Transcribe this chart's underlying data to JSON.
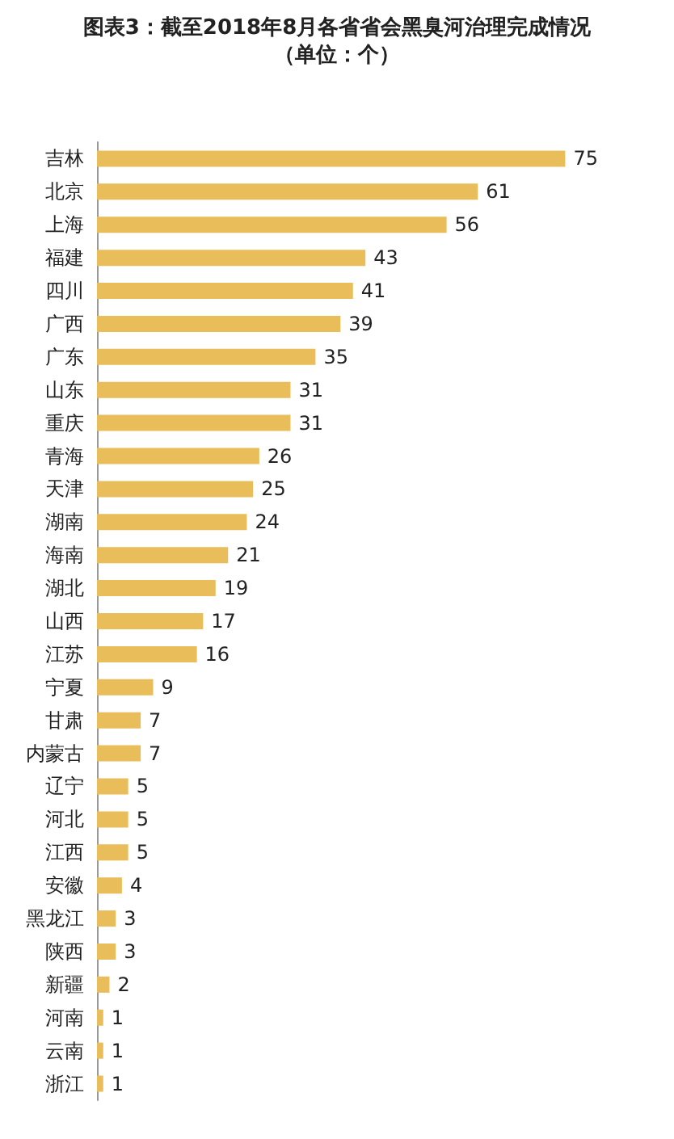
{
  "chart_data": {
    "type": "bar",
    "orientation": "horizontal",
    "title": "图表3：截至2018年8月各省省会黑臭河治理完成情况",
    "subtitle": "（单位：个）",
    "categories": [
      "吉林",
      "北京",
      "上海",
      "福建",
      "四川",
      "广西",
      "广东",
      "山东",
      "重庆",
      "青海",
      "天津",
      "湖南",
      "海南",
      "湖北",
      "山西",
      "江苏",
      "宁夏",
      "甘肃",
      "内蒙古",
      "辽宁",
      "河北",
      "江西",
      "安徽",
      "黑龙江",
      "陕西",
      "新疆",
      "河南",
      "云南",
      "浙江"
    ],
    "values": [
      75,
      61,
      56,
      43,
      41,
      39,
      35,
      31,
      31,
      26,
      25,
      24,
      21,
      19,
      17,
      16,
      9,
      7,
      7,
      5,
      5,
      5,
      4,
      3,
      3,
      2,
      1,
      1,
      1
    ],
    "color": "#e8bd5a",
    "data_labels": true
  }
}
